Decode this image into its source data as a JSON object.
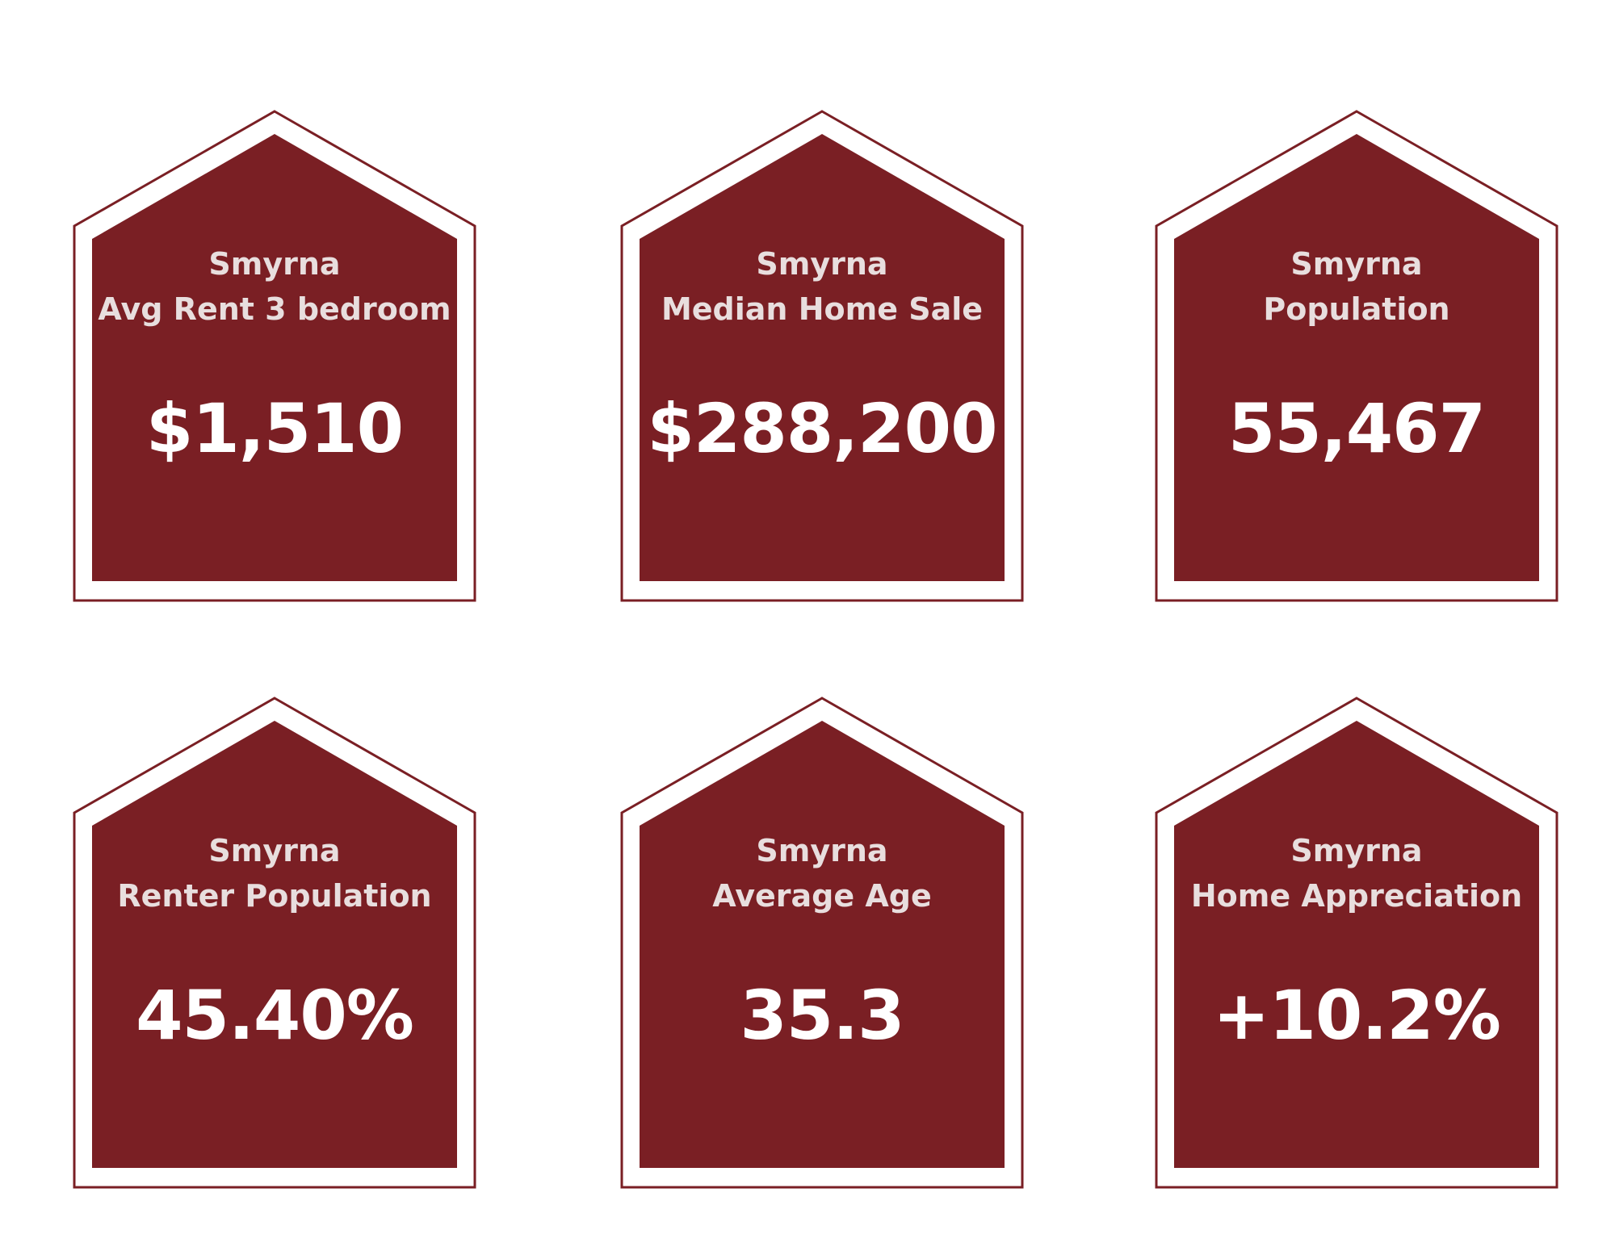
{
  "accent_color": "#7a1f24",
  "cards": [
    {
      "city": "Smyrna",
      "label": "Avg Rent 3 bedroom",
      "value": "$1,510"
    },
    {
      "city": "Smyrna",
      "label": "Median Home Sale",
      "value": "$288,200"
    },
    {
      "city": "Smyrna",
      "label": "Population",
      "value": "55,467"
    },
    {
      "city": "Smyrna",
      "label": "Renter Population",
      "value": "45.40%"
    },
    {
      "city": "Smyrna",
      "label": "Average Age",
      "value": "35.3"
    },
    {
      "city": "Smyrna",
      "label": "Home Appreciation",
      "value": "+10.2%"
    }
  ]
}
